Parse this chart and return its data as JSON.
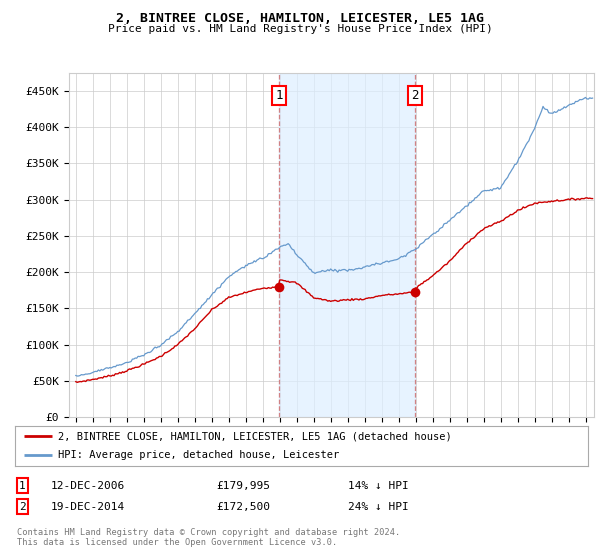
{
  "title": "2, BINTREE CLOSE, HAMILTON, LEICESTER, LE5 1AG",
  "subtitle": "Price paid vs. HM Land Registry's House Price Index (HPI)",
  "ylim": [
    0,
    475000
  ],
  "yticks": [
    0,
    50000,
    100000,
    150000,
    200000,
    250000,
    300000,
    350000,
    400000,
    450000
  ],
  "ytick_labels": [
    "£0",
    "£50K",
    "£100K",
    "£150K",
    "£200K",
    "£250K",
    "£300K",
    "£350K",
    "£400K",
    "£450K"
  ],
  "house_color": "#cc0000",
  "hpi_color": "#6699cc",
  "span_color": "#ddeeff",
  "sale1_x": 2006.958,
  "sale1_y": 179995,
  "sale2_x": 2014.958,
  "sale2_y": 172500,
  "sale1_date": "12-DEC-2006",
  "sale1_price": "£179,995",
  "sale1_hpi": "14% ↓ HPI",
  "sale2_date": "19-DEC-2014",
  "sale2_price": "£172,500",
  "sale2_hpi": "24% ↓ HPI",
  "legend_house": "2, BINTREE CLOSE, HAMILTON, LEICESTER, LE5 1AG (detached house)",
  "legend_hpi": "HPI: Average price, detached house, Leicester",
  "footer": "Contains HM Land Registry data © Crown copyright and database right 2024.\nThis data is licensed under the Open Government Licence v3.0.",
  "background_color": "#ffffff",
  "grid_color": "#cccccc",
  "xlim_left": 1994.6,
  "xlim_right": 2025.5
}
